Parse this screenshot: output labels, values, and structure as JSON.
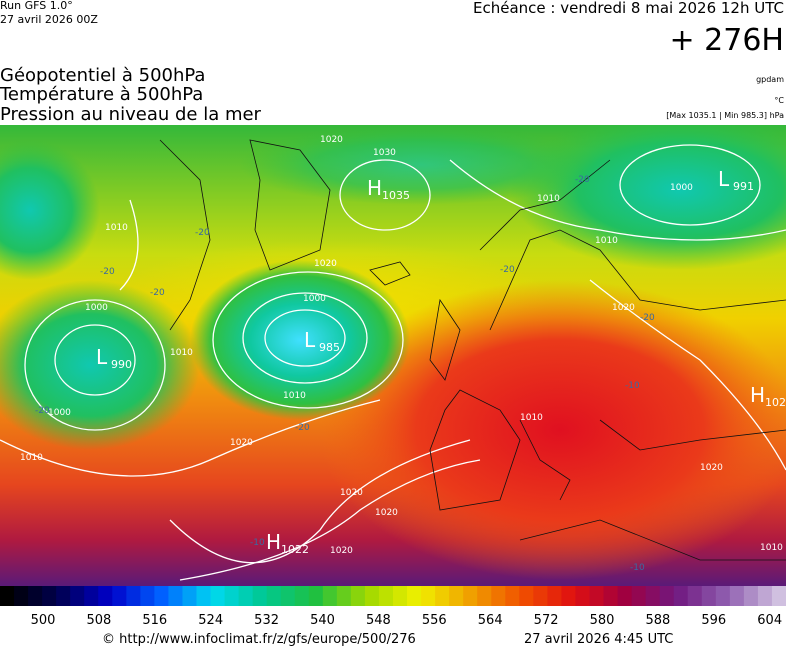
{
  "header": {
    "run": "Run GFS 1.0°",
    "run_date": "27 avril 2026 00Z",
    "valid": "Echéance : vendredi 8 mai 2026 12h UTC",
    "lead": "+ 276H"
  },
  "fields": [
    "Géopotentiel à 500hPa",
    "Température à 500hPa",
    "Pression au niveau de la mer"
  ],
  "units": {
    "geopotential": "gpdam",
    "temperature": "°C",
    "pressure": "[Max 1035.1 | Min 985.3] hPa"
  },
  "centers": [
    {
      "letter": "H",
      "value": "1035"
    },
    {
      "letter": "L",
      "value": "985"
    },
    {
      "letter": "L",
      "value": "991"
    },
    {
      "letter": "L",
      "value": "990"
    },
    {
      "letter": "H",
      "value": "1022"
    },
    {
      "letter": "H",
      "value": "102"
    }
  ],
  "isobar_labels": [
    "1030",
    "1020",
    "1020",
    "1010",
    "1010",
    "1000",
    "1000",
    "1010",
    "1010",
    "1000",
    "1010",
    "1020",
    "1020",
    "1020",
    "1020",
    "1020",
    "1010",
    "1010",
    "1000",
    "1020",
    "1010"
  ],
  "isotherm_labels": [
    "-20",
    "-20",
    "-20",
    "-20",
    "-20",
    "-20",
    "-20",
    "-20",
    "-10",
    "-10",
    "-10"
  ],
  "colorbar": {
    "labels": [
      "500",
      "508",
      "516",
      "524",
      "532",
      "540",
      "548",
      "556",
      "564",
      "572",
      "580",
      "588",
      "596",
      "604"
    ],
    "colors": [
      "#000000",
      "#000050",
      "#0000c8",
      "#0060ff",
      "#00d8f0",
      "#00c890",
      "#20c040",
      "#a0d800",
      "#f0f000",
      "#f0a000",
      "#f05000",
      "#e01010",
      "#a00040",
      "#701880",
      "#9060b0",
      "#d0c0e0"
    ]
  },
  "footer": {
    "source": "© http://www.infoclimat.fr/z/gfs/europe/500/276",
    "generated": "27 avril 2026  4:45 UTC"
  }
}
